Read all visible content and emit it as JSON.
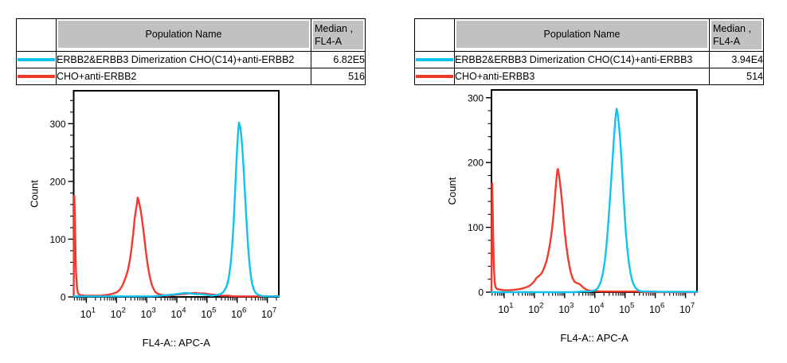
{
  "tables": {
    "left": {
      "headers": {
        "population": "Population Name",
        "median_line1": "Median ,",
        "median_line2": "FL4-A"
      },
      "rows": [
        {
          "color": "#0fc3ef",
          "population": "ERBB2&ERBB3 Dimerization CHO(C14)+anti-ERBB2",
          "median": "6.82E5"
        },
        {
          "color": "#f23a2e",
          "population": "CHO+anti-ERBB2",
          "median": "516"
        }
      ]
    },
    "right": {
      "headers": {
        "population": "Population Name",
        "median_line1": "Median ,",
        "median_line2": "FL4-A"
      },
      "rows": [
        {
          "color": "#0fc3ef",
          "population": "ERBB2&ERBB3 Dimerization CHO(C14)+anti-ERBB3",
          "median": "3.94E4"
        },
        {
          "color": "#f23a2e",
          "population": "CHO+anti-ERBB3",
          "median": "514"
        }
      ]
    }
  },
  "chart_data": [
    {
      "type": "line",
      "subtype": "flow-cytometry-histogram",
      "title": "",
      "xlabel": "FL4-A:: APC-A",
      "ylabel": "Count",
      "xscale": "log",
      "xtick_base": "10",
      "xtick_decades": [
        1,
        2,
        3,
        4,
        5,
        6,
        7
      ],
      "xlim_exponents": [
        0.58,
        7.38
      ],
      "ylim": [
        0,
        357
      ],
      "yticks": [
        0,
        100,
        200,
        300
      ],
      "y_minor_step": 20,
      "grid": false,
      "legend": "none",
      "series": [
        {
          "name": "CHO+anti-ERBB2",
          "color": "#f23a2e",
          "median": 516,
          "points": [
            [
              0.58,
              1
            ],
            [
              0.6,
              175
            ],
            [
              0.62,
              140
            ],
            [
              0.64,
              80
            ],
            [
              0.66,
              40
            ],
            [
              0.69,
              15
            ],
            [
              0.72,
              7
            ],
            [
              0.76,
              4
            ],
            [
              0.82,
              3
            ],
            [
              0.95,
              2
            ],
            [
              1.2,
              2
            ],
            [
              1.45,
              2
            ],
            [
              1.6,
              3
            ],
            [
              1.75,
              4
            ],
            [
              1.9,
              6
            ],
            [
              2.0,
              8
            ],
            [
              2.1,
              12
            ],
            [
              2.2,
              20
            ],
            [
              2.3,
              33
            ],
            [
              2.38,
              47
            ],
            [
              2.45,
              66
            ],
            [
              2.5,
              85
            ],
            [
              2.55,
              108
            ],
            [
              2.6,
              135
            ],
            [
              2.64,
              150
            ],
            [
              2.66,
              156
            ],
            [
              2.68,
              162
            ],
            [
              2.7,
              172
            ],
            [
              2.73,
              168
            ],
            [
              2.76,
              160
            ],
            [
              2.8,
              150
            ],
            [
              2.84,
              136
            ],
            [
              2.88,
              120
            ],
            [
              2.92,
              103
            ],
            [
              2.96,
              85
            ],
            [
              3.0,
              68
            ],
            [
              3.05,
              50
            ],
            [
              3.1,
              36
            ],
            [
              3.15,
              25
            ],
            [
              3.2,
              17
            ],
            [
              3.28,
              9
            ],
            [
              3.35,
              6
            ],
            [
              3.45,
              4
            ],
            [
              3.55,
              3
            ],
            [
              3.7,
              2
            ],
            [
              3.85,
              3
            ],
            [
              4.0,
              4
            ],
            [
              4.2,
              5
            ],
            [
              4.4,
              6
            ],
            [
              4.6,
              7
            ],
            [
              4.75,
              6
            ],
            [
              4.9,
              6
            ],
            [
              5.05,
              5
            ],
            [
              5.2,
              4
            ],
            [
              5.35,
              3
            ],
            [
              5.5,
              2
            ],
            [
              5.7,
              2
            ],
            [
              5.9,
              1
            ],
            [
              6.3,
              1
            ],
            [
              6.8,
              1
            ],
            [
              7.38,
              1
            ]
          ]
        },
        {
          "name": "ERBB2&ERBB3 Dimerization CHO(C14)+anti-ERBB2",
          "color": "#0fc3ef",
          "median": 682000,
          "points": [
            [
              0.58,
              1
            ],
            [
              1.5,
              1
            ],
            [
              2.5,
              1
            ],
            [
              3.2,
              1
            ],
            [
              3.45,
              2
            ],
            [
              3.65,
              3
            ],
            [
              3.85,
              4
            ],
            [
              4.0,
              5
            ],
            [
              4.15,
              6
            ],
            [
              4.3,
              7
            ],
            [
              4.45,
              6
            ],
            [
              4.6,
              5
            ],
            [
              4.75,
              5
            ],
            [
              4.9,
              4
            ],
            [
              5.05,
              3
            ],
            [
              5.15,
              2
            ],
            [
              5.3,
              3
            ],
            [
              5.45,
              5
            ],
            [
              5.55,
              9
            ],
            [
              5.65,
              18
            ],
            [
              5.72,
              32
            ],
            [
              5.78,
              55
            ],
            [
              5.83,
              85
            ],
            [
              5.88,
              125
            ],
            [
              5.92,
              170
            ],
            [
              5.96,
              215
            ],
            [
              6.0,
              258
            ],
            [
              6.03,
              285
            ],
            [
              6.06,
              302
            ],
            [
              6.1,
              295
            ],
            [
              6.14,
              278
            ],
            [
              6.18,
              250
            ],
            [
              6.22,
              215
            ],
            [
              6.26,
              178
            ],
            [
              6.3,
              140
            ],
            [
              6.34,
              105
            ],
            [
              6.38,
              76
            ],
            [
              6.42,
              52
            ],
            [
              6.46,
              34
            ],
            [
              6.5,
              22
            ],
            [
              6.55,
              13
            ],
            [
              6.6,
              8
            ],
            [
              6.68,
              4
            ],
            [
              6.78,
              2
            ],
            [
              6.9,
              1
            ],
            [
              7.1,
              1
            ],
            [
              7.38,
              1
            ]
          ]
        }
      ]
    },
    {
      "type": "line",
      "subtype": "flow-cytometry-histogram",
      "title": "",
      "xlabel": "FL4-A:: APC-A",
      "ylabel": "Count",
      "xscale": "log",
      "xtick_base": "10",
      "xtick_decades": [
        1,
        2,
        3,
        4,
        5,
        6,
        7
      ],
      "xlim_exponents": [
        0.58,
        7.38
      ],
      "ylim": [
        0,
        312
      ],
      "yticks": [
        0,
        100,
        200,
        300
      ],
      "y_minor_step": 20,
      "grid": false,
      "legend": "none",
      "series": [
        {
          "name": "CHO+anti-ERBB3",
          "color": "#f23a2e",
          "median": 514,
          "points": [
            [
              0.58,
              1
            ],
            [
              0.6,
              168
            ],
            [
              0.62,
              135
            ],
            [
              0.64,
              75
            ],
            [
              0.66,
              38
            ],
            [
              0.69,
              14
            ],
            [
              0.72,
              7
            ],
            [
              0.76,
              5
            ],
            [
              0.85,
              4
            ],
            [
              1.0,
              3
            ],
            [
              1.2,
              3
            ],
            [
              1.4,
              4
            ],
            [
              1.55,
              5
            ],
            [
              1.7,
              7
            ],
            [
              1.8,
              9
            ],
            [
              1.9,
              12
            ],
            [
              2.0,
              17
            ],
            [
              2.07,
              22
            ],
            [
              2.12,
              24
            ],
            [
              2.18,
              26
            ],
            [
              2.25,
              30
            ],
            [
              2.32,
              37
            ],
            [
              2.4,
              48
            ],
            [
              2.46,
              60
            ],
            [
              2.52,
              76
            ],
            [
              2.58,
              96
            ],
            [
              2.63,
              118
            ],
            [
              2.67,
              140
            ],
            [
              2.7,
              158
            ],
            [
              2.73,
              175
            ],
            [
              2.76,
              188
            ],
            [
              2.78,
              190
            ],
            [
              2.81,
              182
            ],
            [
              2.85,
              168
            ],
            [
              2.89,
              152
            ],
            [
              2.93,
              132
            ],
            [
              2.97,
              110
            ],
            [
              3.01,
              90
            ],
            [
              3.06,
              70
            ],
            [
              3.11,
              53
            ],
            [
              3.16,
              40
            ],
            [
              3.21,
              29
            ],
            [
              3.27,
              21
            ],
            [
              3.33,
              16
            ],
            [
              3.4,
              14
            ],
            [
              3.47,
              13
            ],
            [
              3.53,
              11
            ],
            [
              3.6,
              8
            ],
            [
              3.68,
              5
            ],
            [
              3.76,
              3
            ],
            [
              3.85,
              2
            ],
            [
              4.0,
              2
            ],
            [
              4.2,
              1
            ],
            [
              4.5,
              1
            ],
            [
              4.8,
              1
            ],
            [
              5.1,
              1
            ],
            [
              5.4,
              1
            ],
            [
              5.7,
              0
            ],
            [
              6.5,
              0
            ],
            [
              7.38,
              0
            ]
          ]
        },
        {
          "name": "ERBB2&ERBB3 Dimerization CHO(C14)+anti-ERBB3",
          "color": "#0fc3ef",
          "median": 39400,
          "points": [
            [
              0.58,
              0
            ],
            [
              2.0,
              0
            ],
            [
              3.3,
              0
            ],
            [
              3.6,
              1
            ],
            [
              3.8,
              1
            ],
            [
              3.95,
              2
            ],
            [
              4.05,
              4
            ],
            [
              4.12,
              8
            ],
            [
              4.2,
              16
            ],
            [
              4.27,
              30
            ],
            [
              4.33,
              48
            ],
            [
              4.38,
              70
            ],
            [
              4.43,
              98
            ],
            [
              4.48,
              130
            ],
            [
              4.53,
              165
            ],
            [
              4.58,
              200
            ],
            [
              4.62,
              230
            ],
            [
              4.66,
              255
            ],
            [
              4.69,
              272
            ],
            [
              4.72,
              283
            ],
            [
              4.75,
              277
            ],
            [
              4.79,
              262
            ],
            [
              4.83,
              240
            ],
            [
              4.87,
              212
            ],
            [
              4.91,
              180
            ],
            [
              4.95,
              148
            ],
            [
              4.99,
              118
            ],
            [
              5.03,
              90
            ],
            [
              5.08,
              65
            ],
            [
              5.13,
              45
            ],
            [
              5.18,
              30
            ],
            [
              5.23,
              19
            ],
            [
              5.28,
              12
            ],
            [
              5.34,
              7
            ],
            [
              5.4,
              4
            ],
            [
              5.48,
              2
            ],
            [
              5.58,
              1
            ],
            [
              5.75,
              1
            ],
            [
              6.2,
              0.5
            ],
            [
              7.38,
              0.5
            ]
          ]
        }
      ]
    }
  ]
}
